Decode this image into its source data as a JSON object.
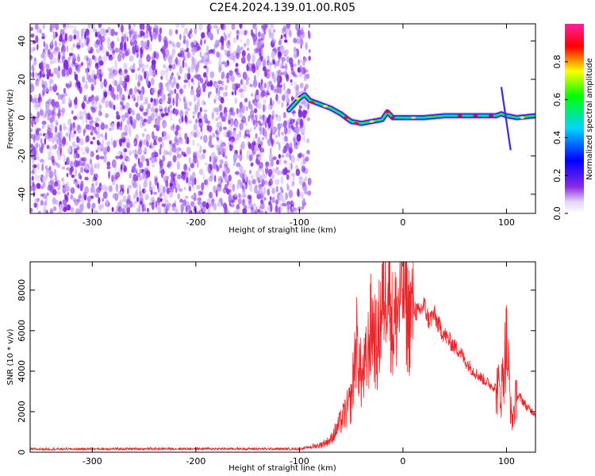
{
  "figure": {
    "title": "C2E4.2024.139.01.00.R05"
  },
  "colors": {
    "snr_line": "#e8262a",
    "speckle": "#8a2be2",
    "frame": "#000000"
  },
  "chart_data": [
    {
      "type": "heatmap",
      "xlabel": "Height of straight line (km)",
      "ylabel": "Frequency (Hz)",
      "xlim": [
        -360,
        128
      ],
      "ylim": [
        -50,
        49
      ],
      "xticks": [
        -300,
        -200,
        -100,
        0,
        100
      ],
      "yticks": [
        -40,
        -20,
        0,
        20,
        40
      ],
      "colorbar": {
        "label": "Normalized spectral amplitude",
        "range": [
          0,
          1
        ],
        "ticks": [
          "0.0",
          "0.2",
          "0.4",
          "0.6",
          "0.8"
        ],
        "colormap": [
          "#ffffff",
          "#8a2be2",
          "#0000ff",
          "#00d5ff",
          "#00ff00",
          "#ffff00",
          "#ff0000",
          "#ff1f9e"
        ]
      },
      "noise_region_km": [
        -360,
        -90
      ],
      "signal_ridge": {
        "x": [
          -110,
          -100,
          -95,
          -90,
          -80,
          -70,
          -60,
          -50,
          -40,
          -30,
          -20,
          -15,
          -10,
          0,
          20,
          40,
          60,
          80,
          90,
          95,
          100,
          110,
          128
        ],
        "y": [
          4,
          10,
          12,
          9,
          7,
          5,
          2,
          -2,
          -3,
          -2,
          -1,
          3,
          0,
          0,
          0,
          1,
          1,
          1,
          1,
          2,
          1,
          0,
          1
        ]
      }
    },
    {
      "type": "line",
      "xlabel": "Height of straight line (km)",
      "ylabel": "SNR (10 * v/v)",
      "xlim": [
        -360,
        128
      ],
      "ylim": [
        0,
        9400
      ],
      "xticks": [
        -300,
        -200,
        -100,
        0,
        100
      ],
      "yticks": [
        0,
        2000,
        4000,
        6000,
        8000
      ],
      "series": [
        {
          "x": [
            -360,
            -300,
            -200,
            -100,
            -90,
            -80,
            -70,
            -60,
            -50,
            -45,
            -40,
            -35,
            -30,
            -25,
            -20,
            -15,
            -10,
            -5,
            0,
            5,
            10,
            15,
            20,
            25,
            30,
            35,
            40,
            45,
            50,
            55,
            60,
            65,
            70,
            75,
            80,
            85,
            90,
            95,
            100,
            105,
            110,
            115,
            120,
            128
          ],
          "y": [
            150,
            160,
            170,
            160,
            250,
            350,
            600,
            1500,
            2500,
            5500,
            3500,
            4500,
            6500,
            5000,
            7500,
            9400,
            6000,
            7000,
            8800,
            6500,
            7200,
            6800,
            7300,
            6500,
            6800,
            6200,
            5800,
            5500,
            5200,
            5000,
            4500,
            4200,
            3900,
            3700,
            3500,
            3300,
            3200,
            3000,
            5500,
            1500,
            2800,
            2600,
            2200,
            1900
          ]
        }
      ]
    }
  ]
}
